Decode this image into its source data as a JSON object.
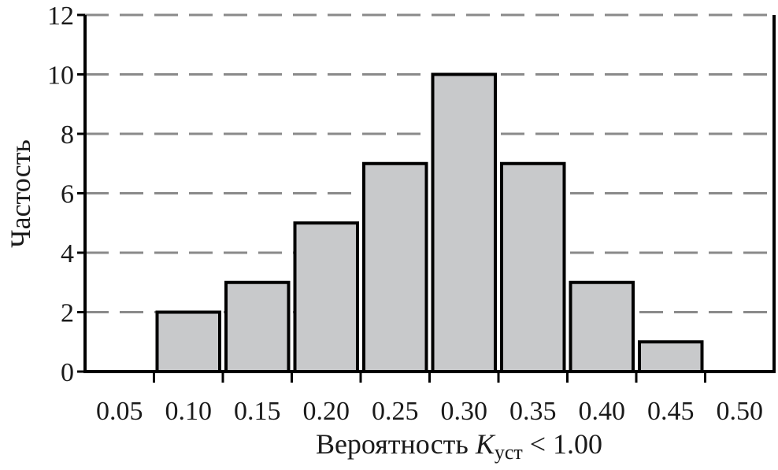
{
  "chart_data": {
    "type": "bar",
    "title": "",
    "ylabel": "Частость",
    "xlabel": {
      "prefix": "Вероятность ",
      "symbol": "K",
      "subscript": "уст",
      "suffix": " < 1.00"
    },
    "x_tick_labels": [
      "0.05",
      "0.10",
      "0.15",
      "0.20",
      "0.25",
      "0.30",
      "0.35",
      "0.40",
      "0.45",
      "0.50"
    ],
    "bins": [
      {
        "from": 0.075,
        "to": 0.125,
        "value": 2
      },
      {
        "from": 0.125,
        "to": 0.175,
        "value": 3
      },
      {
        "from": 0.175,
        "to": 0.225,
        "value": 5
      },
      {
        "from": 0.225,
        "to": 0.275,
        "value": 7
      },
      {
        "from": 0.275,
        "to": 0.325,
        "value": 10
      },
      {
        "from": 0.325,
        "to": 0.375,
        "value": 7
      },
      {
        "from": 0.375,
        "to": 0.425,
        "value": 3
      },
      {
        "from": 0.425,
        "to": 0.475,
        "value": 1
      }
    ],
    "ylim": [
      0,
      12
    ],
    "y_ticks": [
      0,
      2,
      4,
      6,
      8,
      10,
      12
    ],
    "xlim": [
      0.025,
      0.525
    ],
    "grid": "horizontal-dashed",
    "colors": {
      "bar_fill": "#c8c9cb",
      "bar_stroke": "#000000",
      "grid": "#8a8a8a"
    }
  }
}
